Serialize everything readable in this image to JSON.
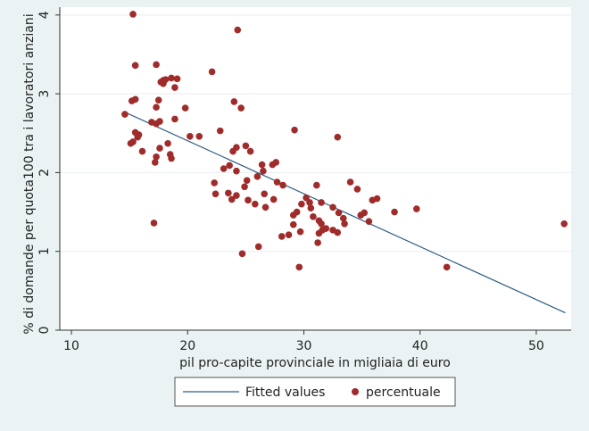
{
  "chart_data": {
    "type": "scatter",
    "xlabel": "pil pro-capite provinciale in migliaia di euro",
    "ylabel": "% di domande per quota100 tra i lavoratori anziani",
    "xlim": [
      9,
      53
    ],
    "ylim": [
      0,
      4.1
    ],
    "x_ticks": [
      10,
      20,
      30,
      40,
      50
    ],
    "y_ticks": [
      0,
      1,
      2,
      3,
      4
    ],
    "grid": "horizontal",
    "legend_position": "bottom",
    "colors": {
      "points": "#a02b2b",
      "fit_line": "#2d5d82",
      "background": "#eaf2f3",
      "plot_area": "#ffffff"
    },
    "series": [
      {
        "name": "Fitted values",
        "kind": "line",
        "x": [
          14.7,
          52.5
        ],
        "y": [
          2.76,
          0.22
        ]
      },
      {
        "name": "percentuale",
        "kind": "scatter",
        "points": [
          [
            15.3,
            4.01
          ],
          [
            24.3,
            3.81
          ],
          [
            15.5,
            3.36
          ],
          [
            17.3,
            3.37
          ],
          [
            22.1,
            3.28
          ],
          [
            17.7,
            3.15
          ],
          [
            17.9,
            3.13
          ],
          [
            18.6,
            3.2
          ],
          [
            19.1,
            3.19
          ],
          [
            17.9,
            3.17
          ],
          [
            18.1,
            3.18
          ],
          [
            15.2,
            2.91
          ],
          [
            15.5,
            2.93
          ],
          [
            17.5,
            2.92
          ],
          [
            17.3,
            2.83
          ],
          [
            18.9,
            3.08
          ],
          [
            19.8,
            2.82
          ],
          [
            24.0,
            2.9
          ],
          [
            24.6,
            2.82
          ],
          [
            14.6,
            2.74
          ],
          [
            16.9,
            2.64
          ],
          [
            17.3,
            2.62
          ],
          [
            17.6,
            2.65
          ],
          [
            18.9,
            2.68
          ],
          [
            15.5,
            2.51
          ],
          [
            15.8,
            2.48
          ],
          [
            15.7,
            2.45
          ],
          [
            15.1,
            2.37
          ],
          [
            15.3,
            2.39
          ],
          [
            16.1,
            2.27
          ],
          [
            17.6,
            2.31
          ],
          [
            17.3,
            2.2
          ],
          [
            17.2,
            2.13
          ],
          [
            18.3,
            2.37
          ],
          [
            18.5,
            2.23
          ],
          [
            18.6,
            2.18
          ],
          [
            20.2,
            2.46
          ],
          [
            21.0,
            2.46
          ],
          [
            22.8,
            2.53
          ],
          [
            29.2,
            2.54
          ],
          [
            32.9,
            2.45
          ],
          [
            23.9,
            2.27
          ],
          [
            24.2,
            2.32
          ],
          [
            25.0,
            2.34
          ],
          [
            25.4,
            2.27
          ],
          [
            26.4,
            2.1
          ],
          [
            27.3,
            2.1
          ],
          [
            27.6,
            2.13
          ],
          [
            23.1,
            2.05
          ],
          [
            23.6,
            2.09
          ],
          [
            24.2,
            2.02
          ],
          [
            26.0,
            1.95
          ],
          [
            26.5,
            2.02
          ],
          [
            22.3,
            1.87
          ],
          [
            25.1,
            1.9
          ],
          [
            24.9,
            1.82
          ],
          [
            27.7,
            1.88
          ],
          [
            28.2,
            1.84
          ],
          [
            22.4,
            1.73
          ],
          [
            23.5,
            1.74
          ],
          [
            23.8,
            1.66
          ],
          [
            24.2,
            1.71
          ],
          [
            25.2,
            1.65
          ],
          [
            25.8,
            1.6
          ],
          [
            26.6,
            1.73
          ],
          [
            27.4,
            1.66
          ],
          [
            26.7,
            1.56
          ],
          [
            30.2,
            1.68
          ],
          [
            30.5,
            1.62
          ],
          [
            31.1,
            1.84
          ],
          [
            31.5,
            1.62
          ],
          [
            32.5,
            1.56
          ],
          [
            29.1,
            1.46
          ],
          [
            29.4,
            1.5
          ],
          [
            29.8,
            1.6
          ],
          [
            30.6,
            1.55
          ],
          [
            30.8,
            1.44
          ],
          [
            31.3,
            1.39
          ],
          [
            31.5,
            1.35
          ],
          [
            33.0,
            1.49
          ],
          [
            33.4,
            1.42
          ],
          [
            34.0,
            1.88
          ],
          [
            34.6,
            1.79
          ],
          [
            34.9,
            1.46
          ],
          [
            35.2,
            1.49
          ],
          [
            35.9,
            1.65
          ],
          [
            36.3,
            1.67
          ],
          [
            37.8,
            1.5
          ],
          [
            39.7,
            1.54
          ],
          [
            31.6,
            1.27
          ],
          [
            31.9,
            1.29
          ],
          [
            32.5,
            1.27
          ],
          [
            31.3,
            1.23
          ],
          [
            32.9,
            1.24
          ],
          [
            33.5,
            1.35
          ],
          [
            35.6,
            1.38
          ],
          [
            28.1,
            1.19
          ],
          [
            28.7,
            1.21
          ],
          [
            29.7,
            1.25
          ],
          [
            31.2,
            1.11
          ],
          [
            29.1,
            1.34
          ],
          [
            17.1,
            1.36
          ],
          [
            26.1,
            1.06
          ],
          [
            24.7,
            0.97
          ],
          [
            29.6,
            0.8
          ],
          [
            42.3,
            0.8
          ],
          [
            52.4,
            1.35
          ]
        ]
      }
    ]
  }
}
